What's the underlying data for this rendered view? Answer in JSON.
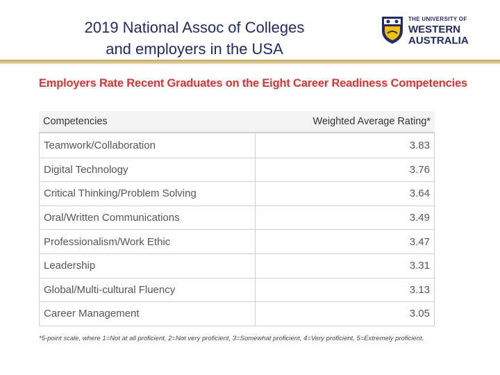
{
  "slide": {
    "title_line1": "2019 National Assoc of Colleges",
    "title_line2": "and employers in the USA"
  },
  "logo": {
    "line_small": "THE UNIVERSITY OF",
    "line1": "WESTERN",
    "line2": "AUSTRALIA",
    "color": "#1f2a72"
  },
  "table": {
    "heading": "Employers Rate Recent Graduates on the Eight Career Readiness Competencies",
    "heading_color": "#e4312f",
    "col_competency": "Competencies",
    "col_rating": "Weighted Average Rating*",
    "rows": [
      {
        "name": "Teamwork/Collaboration",
        "value": "3.83"
      },
      {
        "name": "Digital Technology",
        "value": "3.76"
      },
      {
        "name": "Critical Thinking/Problem Solving",
        "value": "3.64"
      },
      {
        "name": "Oral/Written Communications",
        "value": "3.49"
      },
      {
        "name": "Professionalism/Work Ethic",
        "value": "3.47"
      },
      {
        "name": "Leadership",
        "value": "3.31"
      },
      {
        "name": "Global/Multi-cultural Fluency",
        "value": "3.13"
      },
      {
        "name": "Career Management",
        "value": "3.05"
      }
    ],
    "footnote": "*5-point scale, where 1=Not at all proficient, 2=Not very proficient, 3=Somewhat proficient, 4=Very proficient, 5=Extremely proficient."
  }
}
